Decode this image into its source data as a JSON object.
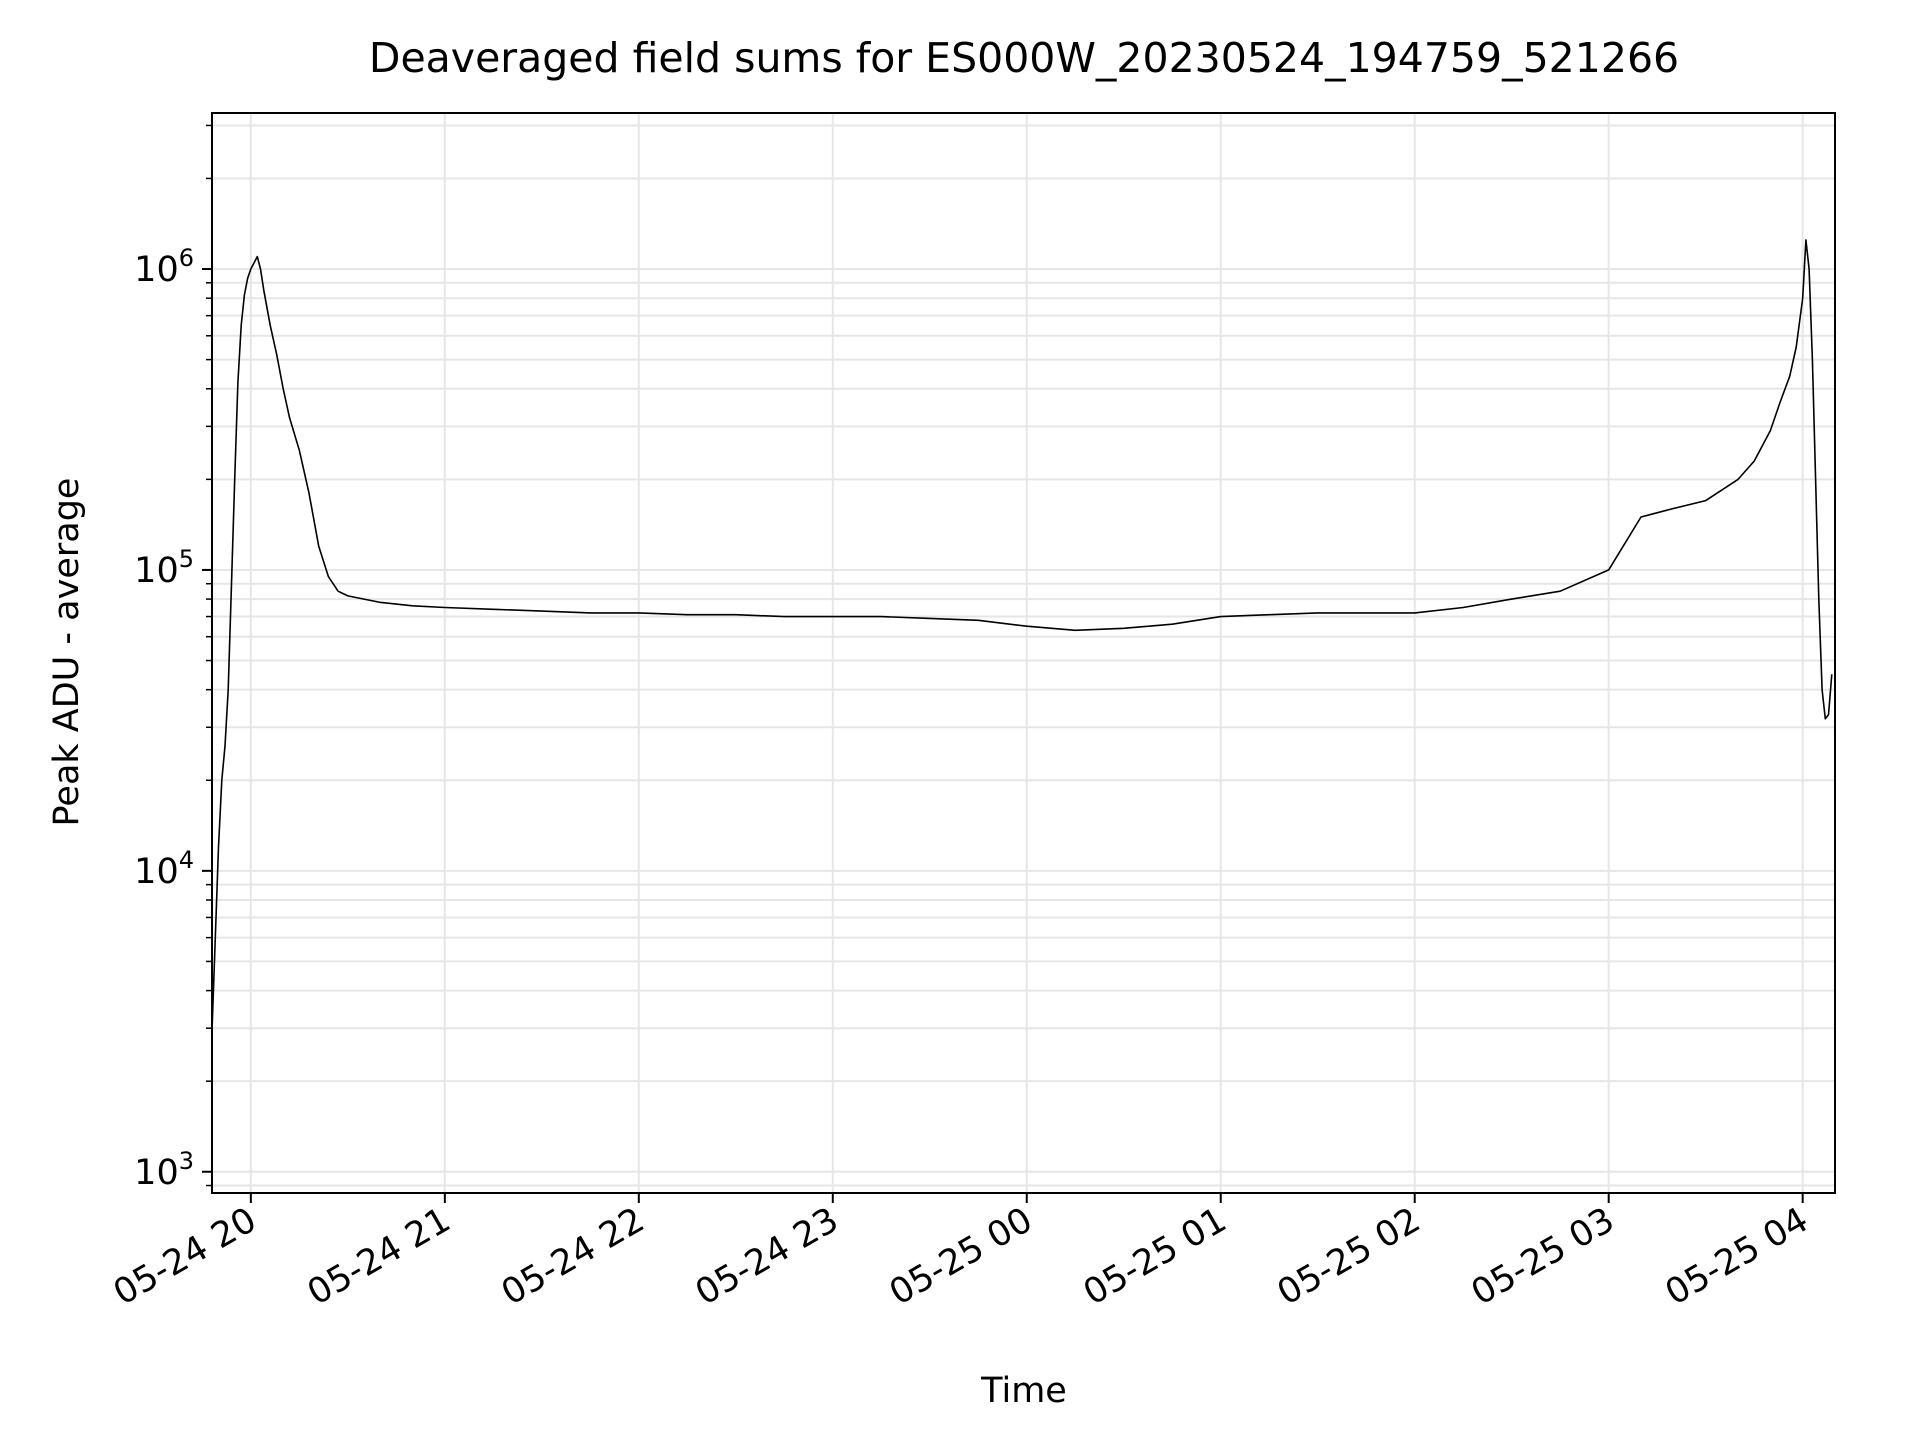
{
  "chart_data": {
    "type": "line",
    "title": "Deaveraged field sums for ES000W_20230524_194759_521266",
    "xlabel": "Time",
    "ylabel": "Peak ADU - average",
    "xlim": [
      "2023-05-24T19:47:59",
      "2023-05-25T04:10:00"
    ],
    "ylim": [
      850,
      3300000
    ],
    "y_scale": "log",
    "grid": true,
    "x_ticks": [
      {
        "value": "2023-05-24T20:00:00",
        "label": "05-24 20"
      },
      {
        "value": "2023-05-24T21:00:00",
        "label": "05-24 21"
      },
      {
        "value": "2023-05-24T22:00:00",
        "label": "05-24 22"
      },
      {
        "value": "2023-05-24T23:00:00",
        "label": "05-24 23"
      },
      {
        "value": "2023-05-25T00:00:00",
        "label": "05-25 00"
      },
      {
        "value": "2023-05-25T01:00:00",
        "label": "05-25 01"
      },
      {
        "value": "2023-05-25T02:00:00",
        "label": "05-25 02"
      },
      {
        "value": "2023-05-25T03:00:00",
        "label": "05-25 03"
      },
      {
        "value": "2023-05-25T04:00:00",
        "label": "05-25 04"
      }
    ],
    "y_ticks": [
      {
        "value": 1000,
        "base": "10",
        "exp": "3"
      },
      {
        "value": 10000,
        "base": "10",
        "exp": "4"
      },
      {
        "value": 100000,
        "base": "10",
        "exp": "5"
      },
      {
        "value": 1000000,
        "base": "10",
        "exp": "6"
      }
    ],
    "line_color": "#000000",
    "grid_color": "#e6e6e6",
    "series": [
      {
        "x": [
          "2023-05-24T19:48:00",
          "2023-05-24T19:49:00",
          "2023-05-24T19:50:00",
          "2023-05-24T19:51:00",
          "2023-05-24T19:52:00",
          "2023-05-24T19:53:00",
          "2023-05-24T19:54:00",
          "2023-05-24T19:55:00",
          "2023-05-24T19:56:00",
          "2023-05-24T19:57:00",
          "2023-05-24T19:58:00",
          "2023-05-24T19:59:00",
          "2023-05-24T20:00:00",
          "2023-05-24T20:01:00",
          "2023-05-24T20:02:00",
          "2023-05-24T20:03:00",
          "2023-05-24T20:04:00",
          "2023-05-24T20:06:00",
          "2023-05-24T20:08:00",
          "2023-05-24T20:10:00",
          "2023-05-24T20:12:00",
          "2023-05-24T20:15:00",
          "2023-05-24T20:18:00",
          "2023-05-24T20:21:00",
          "2023-05-24T20:24:00",
          "2023-05-24T20:27:00",
          "2023-05-24T20:30:00",
          "2023-05-24T20:35:00",
          "2023-05-24T20:40:00",
          "2023-05-24T20:50:00",
          "2023-05-24T21:00:00",
          "2023-05-24T21:15:00",
          "2023-05-24T21:30:00",
          "2023-05-24T21:45:00",
          "2023-05-24T22:00:00",
          "2023-05-24T22:15:00",
          "2023-05-24T22:30:00",
          "2023-05-24T22:45:00",
          "2023-05-24T23:00:00",
          "2023-05-24T23:15:00",
          "2023-05-24T23:30:00",
          "2023-05-24T23:45:00",
          "2023-05-25T00:00:00",
          "2023-05-25T00:15:00",
          "2023-05-25T00:30:00",
          "2023-05-25T00:45:00",
          "2023-05-25T01:00:00",
          "2023-05-25T01:15:00",
          "2023-05-25T01:30:00",
          "2023-05-25T01:45:00",
          "2023-05-25T02:00:00",
          "2023-05-25T02:15:00",
          "2023-05-25T02:30:00",
          "2023-05-25T02:45:00",
          "2023-05-25T03:00:00",
          "2023-05-25T03:10:00",
          "2023-05-25T03:20:00",
          "2023-05-25T03:30:00",
          "2023-05-25T03:40:00",
          "2023-05-25T03:45:00",
          "2023-05-25T03:50:00",
          "2023-05-25T03:53:00",
          "2023-05-25T03:56:00",
          "2023-05-25T03:58:00",
          "2023-05-25T04:00:00",
          "2023-05-25T04:01:00",
          "2023-05-25T04:02:00",
          "2023-05-25T04:03:00",
          "2023-05-25T04:04:00",
          "2023-05-25T04:05:00",
          "2023-05-25T04:06:00",
          "2023-05-25T04:07:00",
          "2023-05-25T04:08:00",
          "2023-05-25T04:09:00"
        ],
        "y": [
          3000,
          6000,
          12000,
          20000,
          26000,
          40000,
          90000,
          200000,
          420000,
          650000,
          820000,
          930000,
          1000000,
          1050000,
          1100000,
          1000000,
          850000,
          650000,
          520000,
          400000,
          320000,
          250000,
          180000,
          120000,
          95000,
          85000,
          82000,
          80000,
          78000,
          76000,
          75000,
          74000,
          73000,
          72000,
          72000,
          71000,
          71000,
          70000,
          70000,
          70000,
          69000,
          68000,
          65000,
          63000,
          64000,
          66000,
          70000,
          71000,
          72000,
          72000,
          72000,
          75000,
          80000,
          85000,
          100000,
          150000,
          160000,
          170000,
          200000,
          230000,
          290000,
          360000,
          440000,
          550000,
          800000,
          1250000,
          1000000,
          500000,
          200000,
          80000,
          40000,
          32000,
          33000,
          45000
        ]
      }
    ]
  }
}
